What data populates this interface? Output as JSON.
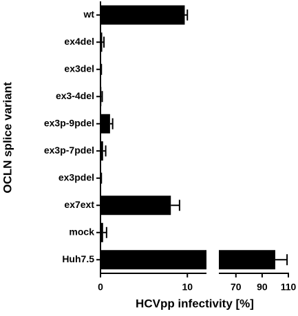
{
  "chart_data": {
    "type": "bar",
    "orientation": "horizontal",
    "categories": [
      "wt",
      "ex4del",
      "ex3del",
      "ex3-4del",
      "ex3p-9pdel",
      "ex3p-7pdel",
      "ex3pdel",
      "ex7ext",
      "mock",
      "Huh7.5"
    ],
    "values": [
      9.7,
      0.2,
      0.05,
      0.1,
      1.1,
      0.3,
      0.05,
      8.1,
      0.3,
      100
    ],
    "errors": [
      0.3,
      0.2,
      0.05,
      0.1,
      0.3,
      0.3,
      0.05,
      1.0,
      0.4,
      9
    ],
    "color": "#000000",
    "xlim": [
      0,
      110
    ],
    "axis_break": [
      12.2,
      57
    ],
    "xticks": [
      0,
      10,
      70,
      90,
      110
    ],
    "xlabel": "HCVpp infectivity [%]",
    "ylabel": "OCLN splice variant"
  }
}
